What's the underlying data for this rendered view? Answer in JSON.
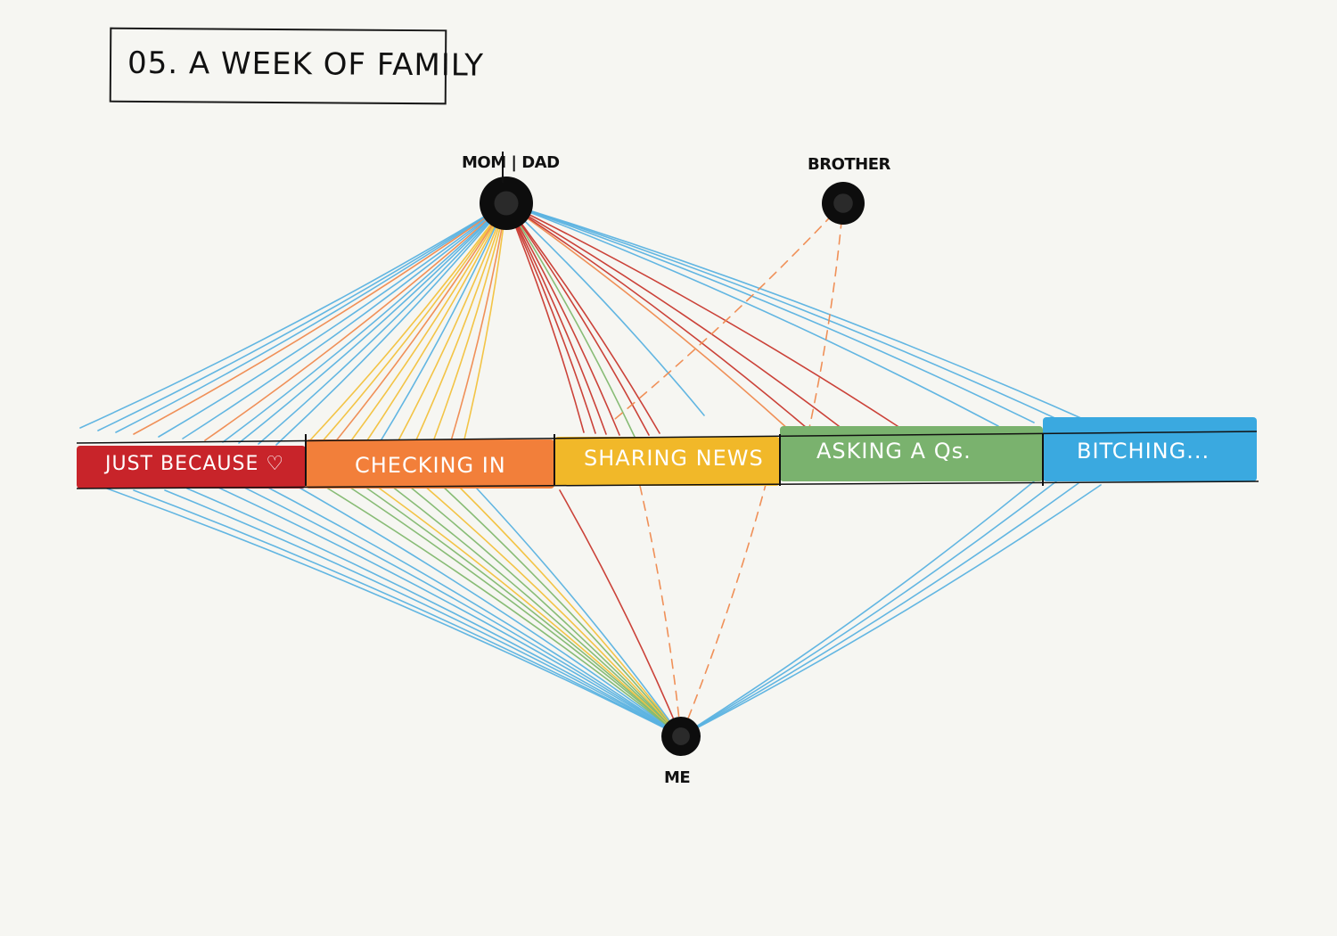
{
  "title": "05. A WEEK OF FAMILY",
  "nodes": {
    "parents": "MOM | DAD",
    "brother": "BROTHER",
    "me": "ME"
  },
  "categories": [
    {
      "label": "JUST BECAUSE ♡",
      "color": "#c8242a"
    },
    {
      "label": "CHECKING IN",
      "color": "#f27f3a"
    },
    {
      "label": "SHARING NEWS",
      "color": "#f1b829"
    },
    {
      "label": "ASKING A Qs.",
      "color": "#7ab26e"
    },
    {
      "label": "BITCHING...",
      "color": "#3aa9e0"
    }
  ],
  "colors": {
    "background": "#f6f6f2",
    "ink": "#111111",
    "line_blue": "#5ab2e0",
    "line_orange": "#ef8a4f",
    "line_red": "#c8382e",
    "line_yellow": "#f2c13c",
    "line_green": "#82b86f"
  }
}
